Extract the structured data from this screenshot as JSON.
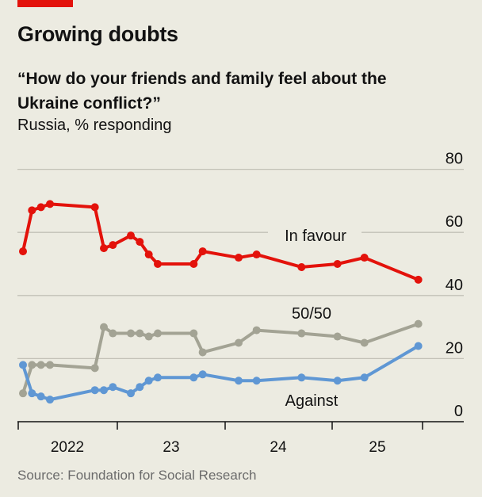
{
  "title": "Growing doubts",
  "subtitle": "“How do your friends and family feel about the Ukraine conflict?”",
  "unit_label": "Russia, % responding",
  "source": "Source: Foundation for Social Research",
  "colors": {
    "accent": "#e3120b",
    "in_favour": "#e3120b",
    "fifty_fifty": "#a3a394",
    "against": "#5f97d4",
    "background": "#ecebe1"
  },
  "chart_data": {
    "type": "line",
    "title": "Growing doubts",
    "ylabel": "Russia, % responding",
    "ylim": [
      0,
      80
    ],
    "yticks": [
      "0",
      "20",
      "40",
      "60",
      "80"
    ],
    "ytick_values": [
      0,
      20,
      40,
      60,
      80
    ],
    "xtick_labels": [
      "2022",
      "23",
      "24",
      "25"
    ],
    "grid": true,
    "x": [
      "2022-02",
      "2022-03",
      "2022-04",
      "2022-05",
      "2022-10",
      "2022-11",
      "2022-12",
      "2023-02",
      "2023-03",
      "2023-04",
      "2023-05",
      "2023-09",
      "2023-10",
      "2024-02",
      "2024-04",
      "2024-09",
      "2025-01",
      "2025-04",
      "2025-10"
    ],
    "series": [
      {
        "name": "In favour",
        "values": [
          54,
          67,
          68,
          69,
          68,
          55,
          56,
          59,
          57,
          53,
          50,
          50,
          54,
          52,
          53,
          49,
          50,
          52,
          45
        ]
      },
      {
        "name": "50/50",
        "values": [
          9,
          18,
          18,
          18,
          17,
          30,
          28,
          28,
          28,
          27,
          28,
          28,
          22,
          25,
          29,
          28,
          27,
          25,
          31
        ]
      },
      {
        "name": "Against",
        "values": [
          18,
          9,
          8,
          7,
          10,
          10,
          11,
          9,
          11,
          13,
          14,
          14,
          15,
          13,
          13,
          14,
          13,
          14,
          24
        ]
      }
    ]
  }
}
